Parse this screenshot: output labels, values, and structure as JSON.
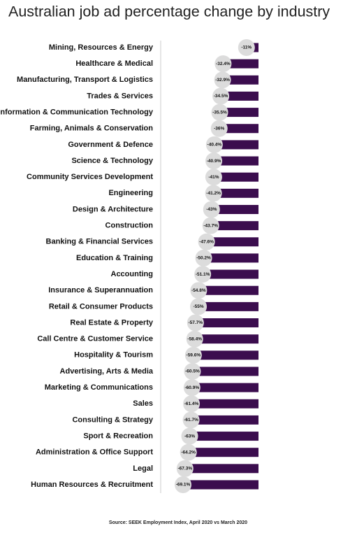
{
  "chart_data": {
    "type": "bar",
    "orientation": "horizontal",
    "title": "Australian job ad percentage change by industry",
    "source": "Source: SEEK Employment Index, April 2020 vs March 2020",
    "categories": [
      "Mining, Resources & Energy",
      "Healthcare & Medical",
      "Manufacturing, Transport & Logistics",
      "Trades & Services",
      "Information & Communication Technology",
      "Farming, Animals & Conservation",
      "Government & Defence",
      "Science & Technology",
      "Community Services  Development",
      "Engineering",
      "Design & Architecture",
      "Construction",
      "Banking & Financial Services",
      "Education & Training",
      "Accounting",
      "Insurance & Superannuation",
      "Retail & Consumer Products",
      "Real Estate & Property",
      "Call Centre & Customer Service",
      "Hospitality & Tourism",
      "Advertising, Arts & Media",
      "Marketing & Communications",
      "Sales",
      "Consulting & Strategy",
      "Sport & Recreation",
      "Administration & Office Support",
      "Legal",
      "Human Resources & Recruitment"
    ],
    "values": [
      -11,
      -32.4,
      -32.9,
      -34.5,
      -35.5,
      -36,
      -40.4,
      -40.9,
      -41,
      -41.2,
      -43,
      -43.7,
      -47.6,
      -50.2,
      -51.1,
      -54.8,
      -55,
      -57.7,
      -58.4,
      -59.6,
      -60.5,
      -60.9,
      -61.4,
      -61.7,
      -63,
      -64.2,
      -67.3,
      -69.1
    ],
    "value_labels": [
      "-11%",
      "-32.4%",
      "-32.9%",
      "-34.5%",
      "-35.5%",
      "-36%",
      "-40.4%",
      "-40.9%",
      "-41%",
      "-41.2%",
      "-43%",
      "-43.7%",
      "-47.6%",
      "-50.2%",
      "-51.1%",
      "-54.8%",
      "-55%",
      "-57.7%",
      "-58.4%",
      "-59.6%",
      "-60.5%",
      "-60.9%",
      "-61.4%",
      "-61.7%",
      "-63%",
      "-64.2%",
      "-67.3%",
      "-69.1%"
    ],
    "color": "#3b0d4e"
  }
}
